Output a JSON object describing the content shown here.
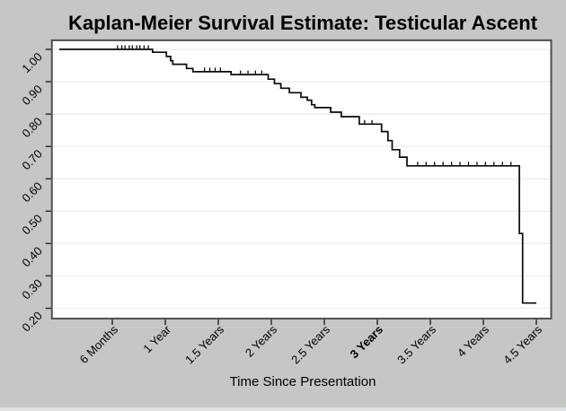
{
  "figure": {
    "title": "Kaplan-Meier Survival Estimate: Testicular Ascent",
    "x_axis_title": "Time Since Presentation"
  },
  "chart_data": {
    "type": "line",
    "subtype": "kaplan_meier_step_function",
    "title": "Kaplan-Meier Survival Estimate: Testicular Ascent",
    "xlabel": "Time Since Presentation",
    "ylabel": "",
    "x_unit": "years",
    "grid": true,
    "legend": "none",
    "xlim": [
      -0.07,
      4.64
    ],
    "ylim": [
      0.168,
      1.028
    ],
    "y_ticks": [
      {
        "v": 1.0,
        "label": "1.00"
      },
      {
        "v": 0.9,
        "label": "0.90"
      },
      {
        "v": 0.8,
        "label": "0.80"
      },
      {
        "v": 0.7,
        "label": "0.70"
      },
      {
        "v": 0.6,
        "label": "0.60"
      },
      {
        "v": 0.5,
        "label": "0.50"
      },
      {
        "v": 0.4,
        "label": "0.40"
      },
      {
        "v": 0.3,
        "label": "0.30"
      },
      {
        "v": 0.2,
        "label": "0.20"
      }
    ],
    "x_ticks": [
      {
        "t": 0.5,
        "label": "6 Months",
        "bold": false
      },
      {
        "t": 1.0,
        "label": "1 Year",
        "bold": false
      },
      {
        "t": 1.5,
        "label": "1.5 Years",
        "bold": false
      },
      {
        "t": 2.0,
        "label": "2 Years",
        "bold": false
      },
      {
        "t": 2.5,
        "label": "2.5 Years",
        "bold": false
      },
      {
        "t": 3.0,
        "label": "3 Years",
        "bold": true
      },
      {
        "t": 3.5,
        "label": "3.5 Years",
        "bold": false
      },
      {
        "t": 4.0,
        "label": "4 Years",
        "bold": false
      },
      {
        "t": 4.5,
        "label": "4.5 Years",
        "bold": false
      }
    ],
    "steps": [
      [
        0.0,
        1.0
      ],
      [
        0.88,
        0.991
      ],
      [
        1.01,
        0.978
      ],
      [
        1.05,
        0.965
      ],
      [
        1.07,
        0.954
      ],
      [
        1.2,
        0.941
      ],
      [
        1.26,
        0.931
      ],
      [
        1.62,
        0.922
      ],
      [
        1.97,
        0.908
      ],
      [
        2.03,
        0.894
      ],
      [
        2.09,
        0.88
      ],
      [
        2.17,
        0.866
      ],
      [
        2.28,
        0.852
      ],
      [
        2.34,
        0.843
      ],
      [
        2.38,
        0.829
      ],
      [
        2.41,
        0.82
      ],
      [
        2.56,
        0.806
      ],
      [
        2.66,
        0.792
      ],
      [
        2.83,
        0.769
      ],
      [
        3.04,
        0.746
      ],
      [
        3.1,
        0.718
      ],
      [
        3.14,
        0.69
      ],
      [
        3.21,
        0.667
      ],
      [
        3.28,
        0.64
      ],
      [
        4.34,
        0.431
      ],
      [
        4.37,
        0.216
      ]
    ],
    "end_time": 4.5,
    "censor_times": [
      0.55,
      0.59,
      0.62,
      0.66,
      0.69,
      0.73,
      0.76,
      0.8,
      0.84,
      1.37,
      1.42,
      1.47,
      1.52,
      1.71,
      1.78,
      1.85,
      1.91,
      2.88,
      2.95,
      3.38,
      3.46,
      3.54,
      3.62,
      3.7,
      3.78,
      3.86,
      3.94,
      4.02,
      4.1,
      4.18,
      4.26
    ],
    "colors": {
      "background": "#c6c6c6",
      "plot_bg": "#ffffff",
      "grid": "#e7f1f1",
      "line": "#0a0a0a",
      "border": "#4f4f4f",
      "tick": "#222222",
      "text": "#000000",
      "bottom_edge": "#dde2e5"
    }
  }
}
